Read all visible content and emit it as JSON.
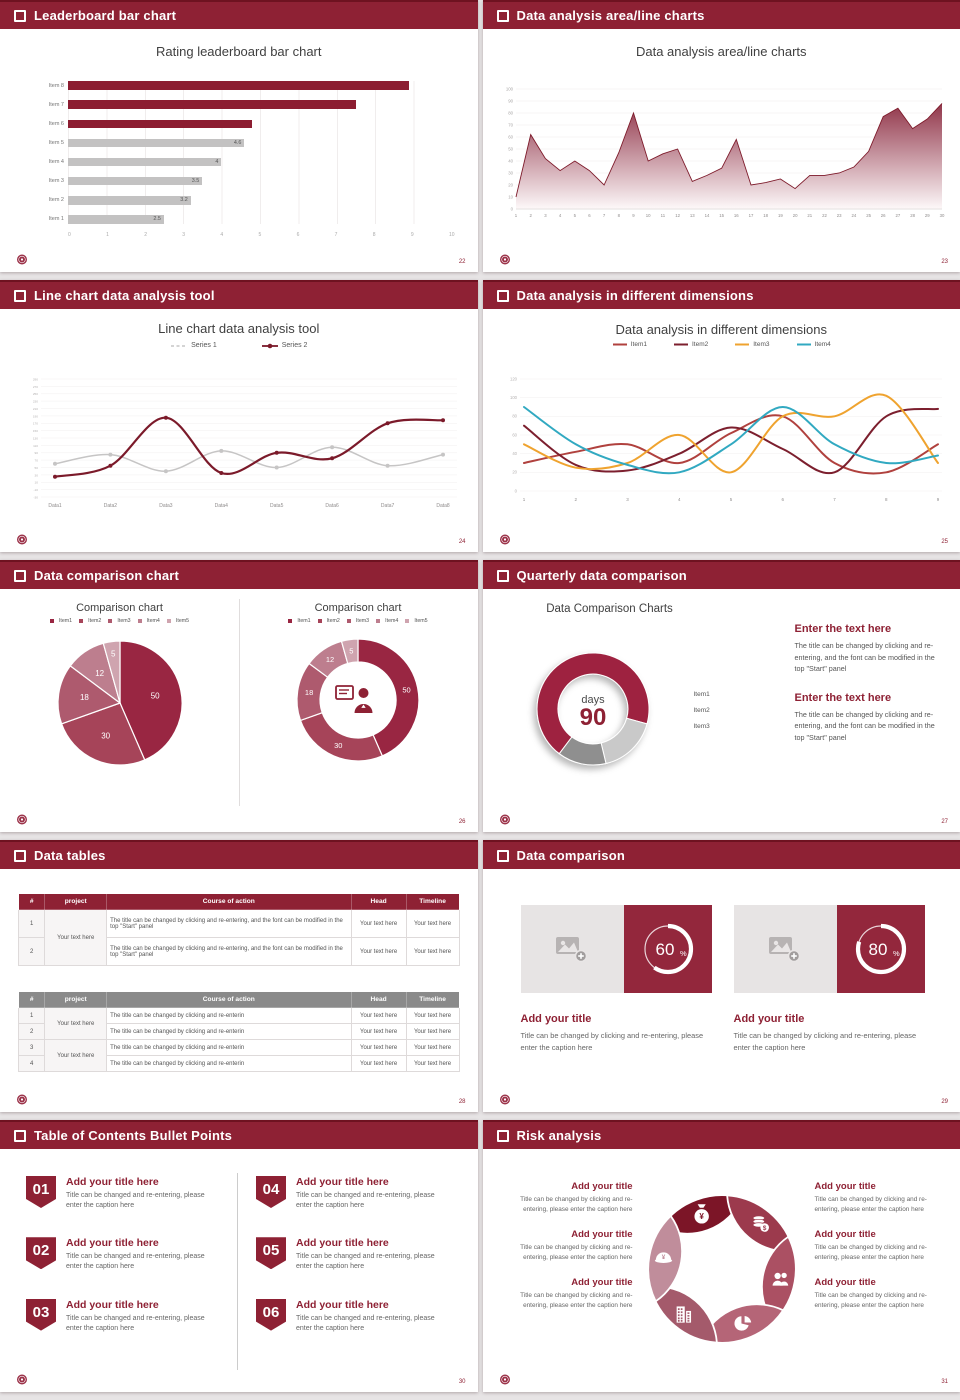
{
  "theme": {
    "maroon": "#8e2134",
    "maroon_dark": "#6e1220",
    "bar_red": "#8c1d31",
    "bar_gray": "#c3c2c2"
  },
  "slides": [
    {
      "header": "Leaderboard bar chart",
      "page": "22",
      "title": "Rating leaderboard bar chart"
    },
    {
      "header": "Data analysis area/line charts",
      "page": "23",
      "title": "Data analysis area/line charts"
    },
    {
      "header": "Line chart data analysis tool",
      "page": "24",
      "title": "Line chart data analysis tool"
    },
    {
      "header": "Data analysis in different dimensions",
      "page": "25",
      "title": "Data analysis in different dimensions"
    },
    {
      "header": "Data comparison chart",
      "page": "26",
      "left_title": "Comparison chart",
      "right_title": "Comparison chart"
    },
    {
      "header": "Quarterly data comparison",
      "page": "27",
      "title": "Data Comparison Charts",
      "center_top": "days",
      "center_value": "90",
      "blocks": [
        {
          "heading": "Enter the text here",
          "body": "The title can be changed by clicking and re-entering, and the font can be modified in the top \"Start\" panel"
        },
        {
          "heading": "Enter the text here",
          "body": "The title can be changed by clicking and re-entering, and the font can be modified in the top \"Start\" panel"
        }
      ]
    },
    {
      "header": "Data tables",
      "page": "28",
      "table1": {
        "header_bg": "#8e2134",
        "columns": [
          "#",
          "project",
          "Course of action",
          "Head",
          "Timeline"
        ],
        "groups": [
          {
            "project": "Your text here",
            "rows": [
              {
                "n": "1",
                "course": "The title can be changed by clicking and re-entering, and the font can be modified in the top \"Start\" panel",
                "head": "Your text here",
                "timeline": "Your text here"
              },
              {
                "n": "2",
                "course": "The title can be changed by clicking and re-entering, and the font can be modified in the top \"Start\" panel",
                "head": "Your text here",
                "timeline": "Your text here"
              }
            ]
          }
        ]
      },
      "table2": {
        "header_bg": "#8a8a8a",
        "columns": [
          "#",
          "project",
          "Course of action",
          "Head",
          "Timeline"
        ],
        "groups": [
          {
            "project": "Your text here",
            "rows": [
              {
                "n": "1",
                "course": "The title can be changed by clicking and re-enterin",
                "head": "Your text here",
                "timeline": "Your text here"
              },
              {
                "n": "2",
                "course": "The title can be changed by clicking and re-enterin",
                "head": "Your text here",
                "timeline": "Your text here"
              }
            ]
          },
          {
            "project": "Your text here",
            "rows": [
              {
                "n": "3",
                "course": "The title can be changed by clicking and re-enterin",
                "head": "Your text here",
                "timeline": "Your text here"
              },
              {
                "n": "4",
                "course": "The title can be changed by clicking and re-enterin",
                "head": "Your text here",
                "timeline": "Your text here"
              }
            ]
          }
        ]
      }
    },
    {
      "header": "Data comparison",
      "page": "29",
      "cards": [
        {
          "percent": 60,
          "heading": "Add your title",
          "body": "Title can be changed by clicking and re-entering, please enter the caption here"
        },
        {
          "percent": 80,
          "heading": "Add your title",
          "body": "Title can be changed by clicking and re-entering, please enter the caption here"
        }
      ]
    },
    {
      "header": "Table of Contents Bullet Points",
      "page": "30",
      "items": [
        {
          "num": "01",
          "title": "Add your title here",
          "body": "Title can be changed and re-entering, please enter the caption here"
        },
        {
          "num": "02",
          "title": "Add your title here",
          "body": "Title can be changed and re-entering, please enter the caption here"
        },
        {
          "num": "03",
          "title": "Add your title here",
          "body": "Title can be changed and re-entering, please enter the caption here"
        },
        {
          "num": "04",
          "title": "Add your title here",
          "body": "Title can be changed and re-entering, please enter the caption here"
        },
        {
          "num": "05",
          "title": "Add your title here",
          "body": "Title can be changed and re-entering, please enter the caption here"
        },
        {
          "num": "06",
          "title": "Add your title here",
          "body": "Title can be changed and re-entering, please enter the caption here"
        }
      ]
    },
    {
      "header": "Risk analysis",
      "page": "31",
      "blocks": [
        {
          "heading": "Add your title",
          "body": "Title can be changed by clicking and re-entering, please enter the caption here"
        },
        {
          "heading": "Add your title",
          "body": "Title can be changed by clicking and re-entering, please enter the caption here"
        },
        {
          "heading": "Add your title",
          "body": "Title can be changed by clicking and re-entering, please enter the caption here"
        },
        {
          "heading": "Add your title",
          "body": "Title can be changed by clicking and re-entering, please enter the caption here"
        },
        {
          "heading": "Add your title",
          "body": "Title can be changed by clicking and re-entering, please enter the caption here"
        },
        {
          "heading": "Add your title",
          "body": "Title can be changed by clicking and re-entering, please enter the caption here"
        }
      ]
    }
  ],
  "chart_data": [
    {
      "id": "leaderboard",
      "type": "bar",
      "orientation": "horizontal",
      "title": "Rating leaderboard bar chart",
      "categories": [
        "Item 8",
        "Item 7",
        "Item 6",
        "Item 5",
        "Item 4",
        "Item 3",
        "Item 2",
        "Item 1"
      ],
      "values": [
        8.9,
        7.5,
        4.8,
        4.6,
        4,
        3.5,
        3.2,
        2.5
      ],
      "value_labels": [
        "",
        "",
        "",
        "4.6",
        "4",
        "3.5",
        "3.2",
        "2.5"
      ],
      "highlight_count": 3,
      "highlight_color": "#8c1d31",
      "bar_color": "#c3c2c2",
      "xlim": [
        0,
        10
      ],
      "x_ticks": [
        0,
        1,
        2,
        3,
        4,
        5,
        6,
        7,
        8,
        9,
        10
      ],
      "grid": true
    },
    {
      "id": "area",
      "type": "area",
      "title": "Data analysis area/line charts",
      "x": [
        1,
        2,
        3,
        4,
        5,
        6,
        7,
        8,
        9,
        10,
        11,
        12,
        13,
        14,
        15,
        16,
        17,
        18,
        19,
        20,
        21,
        22,
        23,
        24,
        25,
        26,
        27,
        28,
        29,
        30
      ],
      "values": [
        10,
        62,
        42,
        32,
        40,
        32,
        20,
        47,
        80,
        40,
        46,
        50,
        23,
        28,
        34,
        58,
        20,
        22,
        25,
        17,
        28,
        28,
        30,
        35,
        48,
        77,
        84,
        67,
        75,
        88
      ],
      "ylim": [
        0,
        100
      ],
      "y_step": 10,
      "line_color": "#7e1b2b",
      "fill_from": "#91364a",
      "fill_to": "#fdf8f9"
    },
    {
      "id": "line-tool",
      "type": "line",
      "title": "Line chart data analysis tool",
      "categories": [
        "Data1",
        "Data2",
        "Data3",
        "Data4",
        "Data5",
        "Data6",
        "Data7",
        "Data8"
      ],
      "ylim": [
        -30,
        290
      ],
      "y_step": 20,
      "series": [
        {
          "name": "Series 1",
          "color": "#c6c5c5",
          "width": 1.5,
          "style": "dashed-legend",
          "values": [
            60,
            85,
            40,
            95,
            50,
            105,
            55,
            85
          ]
        },
        {
          "name": "Series 2",
          "color": "#7b1a2a",
          "width": 2.2,
          "style": "dotted-legend",
          "values": [
            25,
            55,
            185,
            35,
            90,
            75,
            170,
            178
          ]
        }
      ]
    },
    {
      "id": "dimensions",
      "type": "line",
      "title": "Data analysis in different dimensions",
      "x": [
        1,
        2,
        3,
        4,
        5,
        6,
        7,
        8,
        9
      ],
      "ylim": [
        0,
        120
      ],
      "y_step": 20,
      "series": [
        {
          "name": "Item1",
          "color": "#b0413e",
          "values": [
            30,
            42,
            50,
            30,
            62,
            80,
            30,
            20,
            50
          ]
        },
        {
          "name": "Item2",
          "color": "#7c1f2e",
          "values": [
            70,
            28,
            22,
            40,
            68,
            45,
            20,
            80,
            88
          ]
        },
        {
          "name": "Item3",
          "color": "#efa32f",
          "values": [
            50,
            25,
            30,
            60,
            20,
            80,
            80,
            102,
            30
          ]
        },
        {
          "name": "Item4",
          "color": "#31a9c1",
          "values": [
            90,
            50,
            28,
            20,
            50,
            90,
            50,
            30,
            38
          ]
        }
      ]
    },
    {
      "id": "comparison-pie",
      "type": "pie",
      "title": "Comparison chart",
      "variants": [
        "pie",
        "donut"
      ],
      "labels": [
        "Item1",
        "Item2",
        "Item3",
        "Item4",
        "Item5"
      ],
      "values": [
        50,
        30,
        18,
        12,
        5
      ],
      "colors": [
        "#992642",
        "#a64459",
        "#ae5a6e",
        "#bd7e8e",
        "#cfa4af"
      ]
    },
    {
      "id": "quarterly-donut",
      "type": "donut",
      "title": "Data Comparison Charts",
      "labels": [
        "Item1",
        "Item2",
        "Item3"
      ],
      "values_pct": [
        69,
        17,
        14
      ],
      "start_angle": 217,
      "colors": [
        "#9e2340",
        "#c9c9c9",
        "#8f8f8f"
      ],
      "center_label": "days",
      "center_value": "90"
    },
    {
      "id": "progress-rings",
      "type": "progress",
      "values_pct": [
        60,
        80
      ],
      "ring_color": "#ffffff",
      "box_color": "#93273c"
    },
    {
      "id": "risk-pinwheel",
      "type": "cycle-diagram",
      "segments": [
        {
          "icon": "money-bag",
          "color": "#7c1527"
        },
        {
          "icon": "coins",
          "color": "#9c3a4d"
        },
        {
          "icon": "users",
          "color": "#ab5063"
        },
        {
          "icon": "pie-chart",
          "color": "#b56577"
        },
        {
          "icon": "building",
          "color": "#a45a6b"
        },
        {
          "icon": "money-cap",
          "color": "#c08d9b"
        }
      ]
    }
  ]
}
